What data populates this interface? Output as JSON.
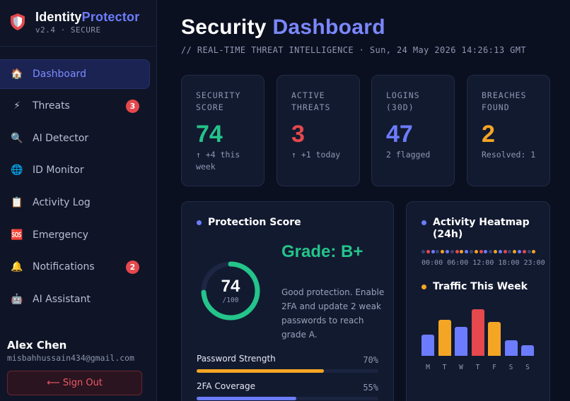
{
  "brand": {
    "title_part1": "Identity",
    "title_part2": "Protector",
    "version": "v2.4 · SECURE",
    "colors": {
      "primary": "#ffffff",
      "accent": "#6c7cff",
      "shield": "#e5484d"
    }
  },
  "sidebar": {
    "items": [
      {
        "label": "Dashboard",
        "icon": "home-icon",
        "glyph": "🏠",
        "active": true,
        "badge": ""
      },
      {
        "label": "Threats",
        "icon": "lightning-icon",
        "glyph": "⚡",
        "active": false,
        "badge": "3"
      },
      {
        "label": "AI Detector",
        "icon": "magnifier-icon",
        "glyph": "🔍",
        "active": false,
        "badge": ""
      },
      {
        "label": "ID Monitor",
        "icon": "globe-icon",
        "glyph": "🌐",
        "active": false,
        "badge": ""
      },
      {
        "label": "Activity Log",
        "icon": "clipboard-icon",
        "glyph": "📋",
        "active": false,
        "badge": ""
      },
      {
        "label": "Emergency",
        "icon": "sos-icon",
        "glyph": "🆘",
        "active": false,
        "badge": ""
      },
      {
        "label": "Notifications",
        "icon": "bell-icon",
        "glyph": "🔔",
        "active": false,
        "badge": "2"
      },
      {
        "label": "AI Assistant",
        "icon": "robot-icon",
        "glyph": "🤖",
        "active": false,
        "badge": ""
      }
    ]
  },
  "user": {
    "name": "Alex Chen",
    "email": "misbahhussain434@gmail.com",
    "signout_label": "⟵ Sign Out"
  },
  "header": {
    "title_part1": "Security",
    "title_part2": "Dashboard",
    "subtitle": "// REAL-TIME THREAT INTELLIGENCE · Sun, 24 May 2026 14:26:13 GMT"
  },
  "stats": [
    {
      "label": "SECURITY SCORE",
      "value": "74",
      "note": "↑ +4 this week",
      "color": "#24c48a"
    },
    {
      "label": "ACTIVE THREATS",
      "value": "3",
      "note": "↑ +1 today",
      "color": "#e5484d"
    },
    {
      "label": "LOGINS (30D)",
      "value": "47",
      "note": "2 flagged",
      "color": "#6c7cff"
    },
    {
      "label": "BREACHES FOUND",
      "value": "2",
      "note": "Resolved: 1",
      "color": "#f5a524"
    }
  ],
  "protection": {
    "title": "Protection Score",
    "dot_color": "#6c7cff",
    "score": "74",
    "score_max": "/100",
    "score_fraction": 0.74,
    "ring_color": "#24c48a",
    "grade": "Grade: B+",
    "description": "Good protection. Enable 2FA and update 2 weak passwords to reach grade A.",
    "metrics": [
      {
        "label": "Password Strength",
        "value": "70%",
        "fraction": 0.7,
        "color": "#f5a524"
      },
      {
        "label": "2FA Coverage",
        "value": "55%",
        "fraction": 0.55,
        "color": "#6c7cff"
      }
    ]
  },
  "heatmap": {
    "title": "Activity Heatmap (24h)",
    "dot_color": "#6c7cff",
    "hours": [
      "#3a4470",
      "#e5484d",
      "#6c7cff",
      "#3a4470",
      "#f5a524",
      "#6c7cff",
      "#3a4470",
      "#e5484d",
      "#f5a524",
      "#6c7cff",
      "#3a4470",
      "#f5a524",
      "#e5484d",
      "#6c7cff",
      "#3a4470",
      "#f5a524",
      "#6c7cff",
      "#e5484d",
      "#3a4470",
      "#f5a524",
      "#6c7cff",
      "#e5484d",
      "#3a4470",
      "#f5a524"
    ],
    "time_labels": "00:00 06:00 12:00 18:00 23:00"
  },
  "traffic": {
    "title": "Traffic This Week",
    "dot_color": "#f5a524",
    "days": [
      "M",
      "T",
      "W",
      "T",
      "F",
      "S",
      "S"
    ],
    "values": [
      45,
      78,
      62,
      100,
      72,
      33,
      22
    ],
    "colors": [
      "#6c7cff",
      "#f5a524",
      "#6c7cff",
      "#e5484d",
      "#f5a524",
      "#6c7cff",
      "#6c7cff"
    ]
  }
}
